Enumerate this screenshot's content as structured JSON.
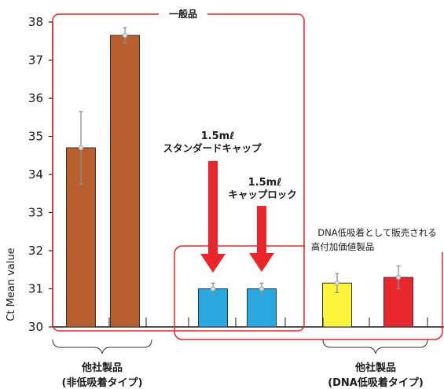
{
  "chart_data": {
    "type": "bar",
    "ylabel": "Ct Mean value",
    "ylim": [
      30,
      38
    ],
    "yticks": [
      30,
      31,
      32,
      33,
      34,
      35,
      36,
      37,
      38
    ],
    "grid": false,
    "bars": [
      {
        "value": 34.7,
        "error": 0.95,
        "color": "#b85f30"
      },
      {
        "value": 37.65,
        "error": 0.2,
        "color": "#b85f30"
      },
      {
        "value": 31.0,
        "error": 0.15,
        "color": "#29a8e0"
      },
      {
        "value": 31.0,
        "error": 0.15,
        "color": "#29a8e0"
      },
      {
        "value": 31.15,
        "error": 0.25,
        "color": "#fcf53c"
      },
      {
        "value": 31.3,
        "error": 0.3,
        "color": "#e8282c"
      }
    ],
    "annotations": {
      "general_box": "一般品",
      "arrow1_line1": "1.5mℓ",
      "arrow1_line2": "スタンダードキャップ",
      "arrow2_line1": "1.5mℓ",
      "arrow2_line2": "キャップロック",
      "premium_line1": "DNA低吸着として販売される",
      "premium_line2": "高付加価値製品",
      "group1_line1": "他社製品",
      "group1_line2": "(非低吸着タイプ)",
      "group2_line1": "他社製品",
      "group2_line2": "(DNA低吸着タイプ)"
    },
    "colors": {
      "box_outline": "#e3262b",
      "arrow": "#e8262b"
    }
  }
}
